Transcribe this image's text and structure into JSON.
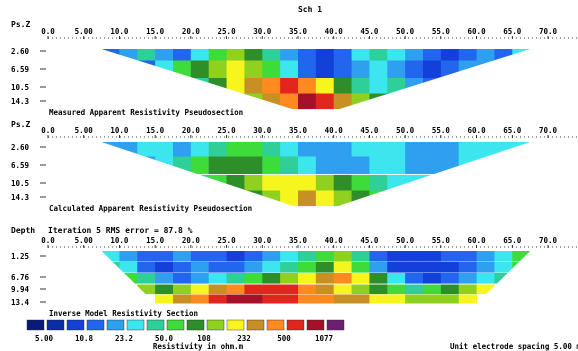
{
  "title": "Sch 1",
  "x_ticks": [
    "0.0",
    "5.00",
    "10.0",
    "15.0",
    "20.0",
    "25.0",
    "30.0",
    "35.0",
    "40.0",
    "45.0",
    "50.0",
    "55.0",
    "60.0",
    "65.0",
    "70.0"
  ],
  "panels": [
    {
      "ylabel": "Ps.Z",
      "caption": "Measured Apparent Resistivity Pseudosection",
      "y_ticks": [
        "2.60",
        "6.59",
        "10.5",
        "14.3"
      ],
      "chart_data": {
        "type": "heatmap",
        "xlabel": "",
        "ylabel": "Ps.Z",
        "x_range": [
          0,
          70
        ],
        "depths": [
          2.6,
          6.59,
          10.5,
          14.3
        ],
        "levels": [
          {
            "x_start": 7.5,
            "x_end": 67.5,
            "classes": [
              3,
              4,
              6,
              4,
              3,
              5,
              7,
              9,
              8,
              6,
              4,
              3,
              2,
              3,
              5,
              6,
              5,
              4,
              3,
              2,
              3,
              4,
              3,
              5
            ]
          },
          {
            "x_start": 12.5,
            "x_end": 62.5,
            "classes": [
              3,
              5,
              7,
              8,
              9,
              10,
              9,
              7,
              5,
              3,
              2,
              3,
              4,
              5,
              4,
              3,
              2,
              3,
              4,
              4
            ]
          },
          {
            "x_start": 20.0,
            "x_end": 55.0,
            "classes": [
              6,
              8,
              10,
              11,
              12,
              13,
              12,
              10,
              8,
              6,
              5,
              6,
              4,
              3
            ]
          },
          {
            "x_start": 27.5,
            "x_end": 47.5,
            "classes": [
              9,
              11,
              12,
              14,
              13,
              11,
              9,
              8
            ]
          }
        ]
      }
    },
    {
      "ylabel": "Ps.Z",
      "caption": "Calculated Apparent Resistivity Pseudosection",
      "y_ticks": [
        "2.60",
        "6.59",
        "10.5",
        "14.3"
      ],
      "chart_data": {
        "type": "heatmap",
        "xlabel": "",
        "ylabel": "Ps.Z",
        "x_range": [
          0,
          70
        ],
        "depths": [
          2.6,
          6.59,
          10.5,
          14.3
        ],
        "levels": [
          {
            "x_start": 7.5,
            "x_end": 67.5,
            "classes": [
              4,
              4,
              5,
              5,
              4,
              5,
              6,
              7,
              7,
              6,
              5,
              4,
              4,
              4,
              5,
              5,
              5,
              4,
              4,
              4,
              5,
              5,
              5,
              5
            ]
          },
          {
            "x_start": 12.5,
            "x_end": 62.5,
            "classes": [
              4,
              5,
              6,
              7,
              8,
              8,
              8,
              7,
              6,
              5,
              4,
              4,
              4,
              5,
              5,
              4,
              4,
              4,
              5,
              5
            ]
          },
          {
            "x_start": 20.0,
            "x_end": 55.0,
            "classes": [
              6,
              7,
              8,
              9,
              10,
              10,
              10,
              9,
              8,
              7,
              6,
              5,
              5,
              5
            ]
          },
          {
            "x_start": 27.5,
            "x_end": 47.5,
            "classes": [
              8,
              9,
              10,
              11,
              10,
              9,
              8,
              7
            ]
          }
        ]
      }
    },
    {
      "ylabel": "Depth",
      "header": "Iteration 5 RMS error = 87.8 %",
      "caption": "Inverse Model Resistivity Section",
      "y_ticks": [
        "1.25",
        "6.76",
        "9.94",
        "13.4"
      ],
      "chart_data": {
        "type": "heatmap",
        "xlabel": "",
        "ylabel": "Depth",
        "x_range": [
          0,
          70
        ],
        "depths": [
          1.25,
          3.96,
          6.76,
          9.94,
          13.4
        ],
        "layers": [
          {
            "x_start": 7.5,
            "x_end": 67.5,
            "classes": [
              5,
              4,
              3,
              3,
              4,
              3,
              3,
              2,
              3,
              4,
              5,
              6,
              7,
              9,
              6,
              3,
              2,
              2,
              2,
              3,
              3,
              4,
              5,
              7
            ]
          },
          {
            "x_start": 7.5,
            "x_end": 67.5,
            "classes": [
              6,
              5,
              3,
              2,
              3,
              4,
              3,
              3,
              4,
              5,
              6,
              7,
              8,
              10,
              7,
              4,
              2,
              2,
              2,
              2,
              3,
              4,
              5,
              7
            ]
          },
          {
            "x_start": 10.0,
            "x_end": 65.0,
            "classes": [
              7,
              6,
              4,
              3,
              4,
              5,
              6,
              7,
              8,
              9,
              10,
              11,
              12,
              10,
              8,
              5,
              3,
              2,
              3,
              4,
              5,
              6
            ]
          },
          {
            "x_start": 12.5,
            "x_end": 62.5,
            "classes": [
              9,
              8,
              9,
              10,
              11,
              12,
              13,
              13,
              13,
              12,
              11,
              10,
              9,
              8,
              7,
              6,
              7,
              8,
              9,
              10
            ]
          },
          {
            "x_start": 15.0,
            "x_end": 60.0,
            "classes": [
              10,
              11,
              12,
              13,
              14,
              14,
              13,
              13,
              12,
              12,
              11,
              11,
              10,
              10,
              9,
              9,
              9,
              10
            ]
          }
        ]
      }
    }
  ],
  "colorbar": {
    "colors": [
      "#0a1a7a",
      "#0b2ca6",
      "#1240d8",
      "#2266ee",
      "#2fa0f0",
      "#3ce6ef",
      "#2fcf9a",
      "#3ddc3a",
      "#2e8f2a",
      "#8fd11e",
      "#f6f51e",
      "#c89024",
      "#ff8a20",
      "#e3261d",
      "#a6112a",
      "#6d1f74"
    ],
    "labels": [
      "5.00",
      "10.8",
      "23.2",
      "50.0",
      "108",
      "232",
      "500",
      "1077"
    ],
    "title": "Resistivity in ohm.m"
  },
  "footer": "Unit electrode spacing 5.00 m"
}
